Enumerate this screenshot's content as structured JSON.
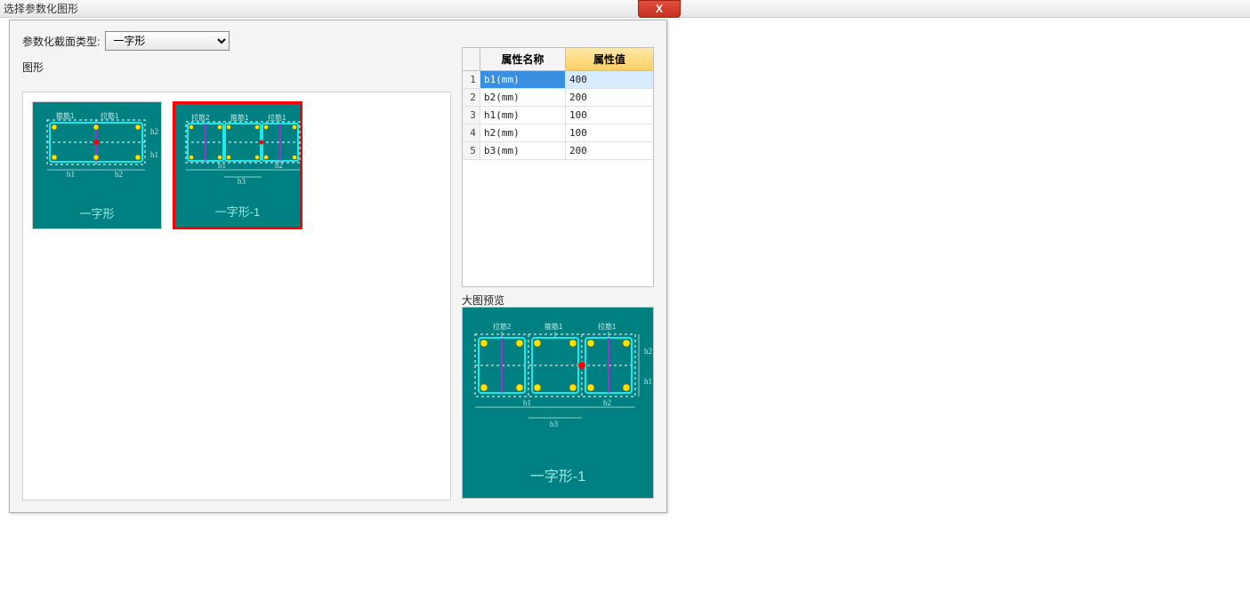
{
  "window": {
    "title": "选择参数化图形",
    "close_glyph": "X"
  },
  "section_type": {
    "label": "参数化截面类型:",
    "selected": "一字形"
  },
  "shapes": {
    "label": "图形",
    "thumbs": [
      {
        "caption": "一字形",
        "selected": false,
        "diagram": "simple"
      },
      {
        "caption": "一字形-1",
        "selected": true,
        "diagram": "complex"
      }
    ]
  },
  "properties": {
    "header_name": "属性名称",
    "header_value": "属性值",
    "rows": [
      {
        "idx": "1",
        "name": "b1(mm)",
        "value": "400",
        "selected": true
      },
      {
        "idx": "2",
        "name": "b2(mm)",
        "value": "200",
        "selected": false
      },
      {
        "idx": "3",
        "name": "h1(mm)",
        "value": "100",
        "selected": false
      },
      {
        "idx": "4",
        "name": "h2(mm)",
        "value": "100",
        "selected": false
      },
      {
        "idx": "5",
        "name": "b3(mm)",
        "value": "200",
        "selected": false
      }
    ]
  },
  "preview": {
    "label": "大图预览",
    "caption": "一字形-1"
  },
  "diagram": {
    "bg_color": "#008080",
    "stirrup_color": "#20e8e8",
    "outline_color": "#ffffff",
    "rebar_color": "#ffe000",
    "center_color": "#ff0000",
    "tie_color": "#ff00ff",
    "text_color": "#c0e8e8",
    "simple": {
      "labels": [
        "箍筋1",
        "拉筋1"
      ],
      "dims": [
        "b1",
        "b2",
        "h1",
        "h2"
      ],
      "rebar_count": 8
    },
    "complex": {
      "labels": [
        "拉筋2",
        "箍筋1",
        "拉筋1"
      ],
      "dims": [
        "b1",
        "b2",
        "b3",
        "h1",
        "h2"
      ],
      "rebar_count": 12
    }
  }
}
